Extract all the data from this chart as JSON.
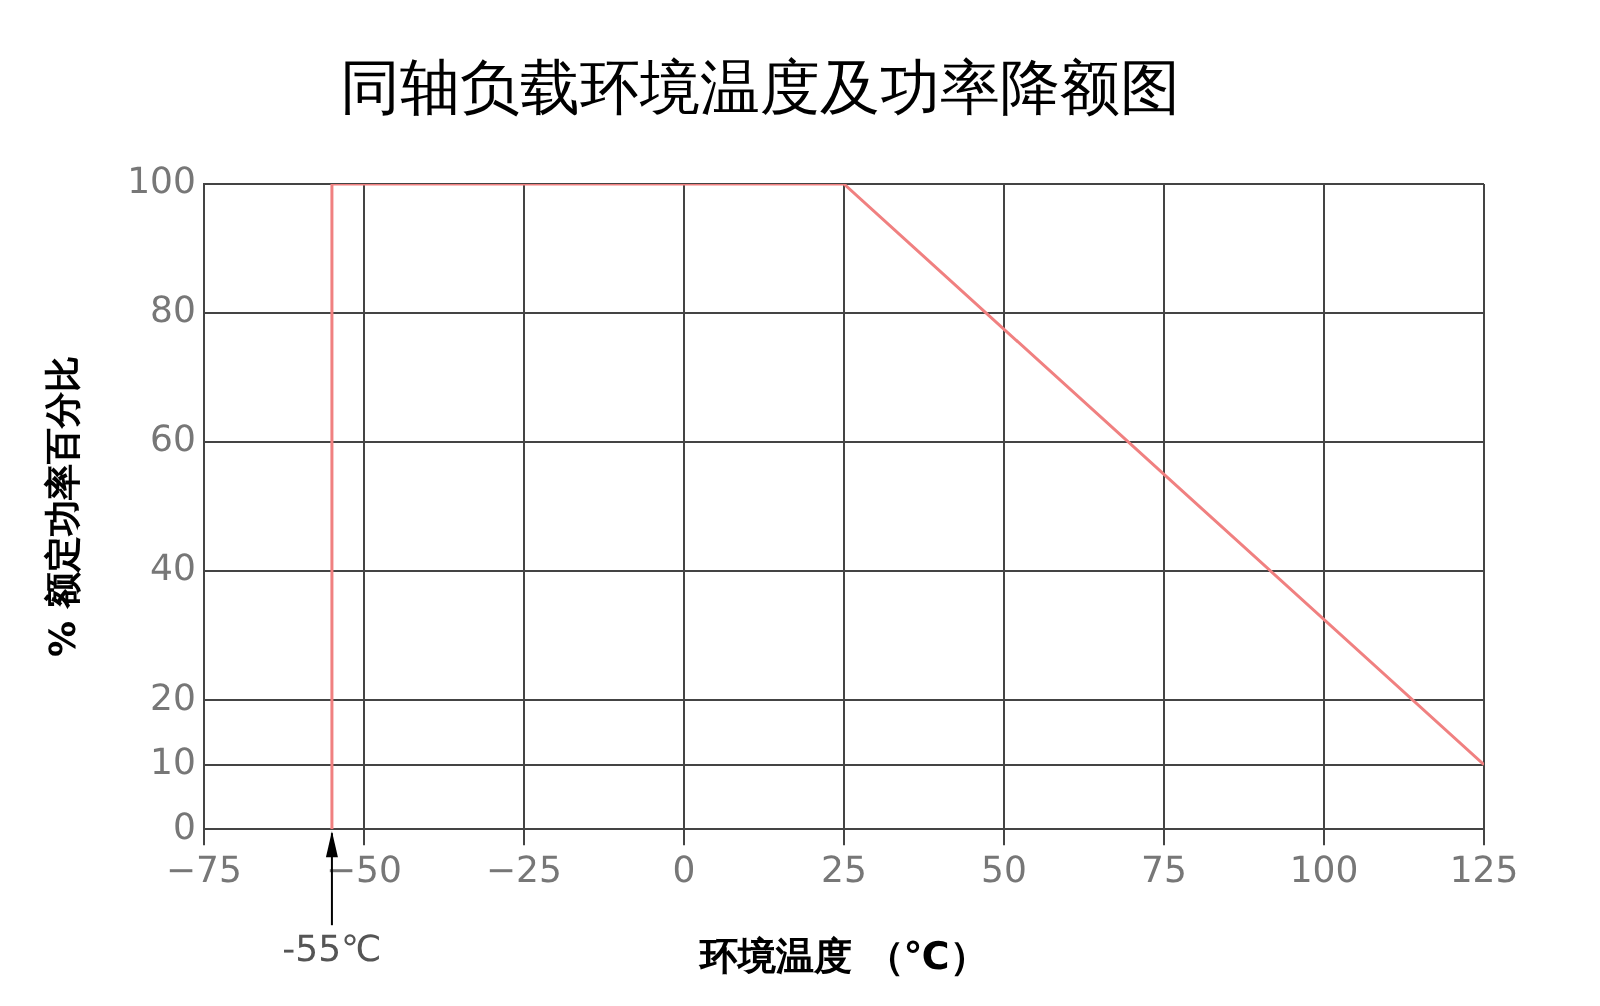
{
  "chart_data": {
    "type": "line",
    "title": "同轴负载环境温度及功率降额图",
    "xlabel": "环境温度 （℃）",
    "ylabel": "% 额定功率百分比",
    "series": [
      {
        "color": "#f08080",
        "x": [
          -55,
          -55,
          25,
          125
        ],
        "values": [
          0,
          100,
          100,
          10
        ]
      }
    ],
    "xlim": [
      -75,
      125
    ],
    "xticks": [
      -75,
      -50,
      -25,
      0,
      25,
      50,
      75,
      100,
      125
    ],
    "ylim": [
      0,
      100
    ],
    "yticks": [
      0,
      10,
      20,
      40,
      60,
      80,
      100
    ],
    "grid": true,
    "legend": false,
    "marker": "none",
    "line_style": "solid",
    "annotations": [
      {
        "text": "-55℃",
        "x": -55,
        "y": 0
      }
    ]
  }
}
